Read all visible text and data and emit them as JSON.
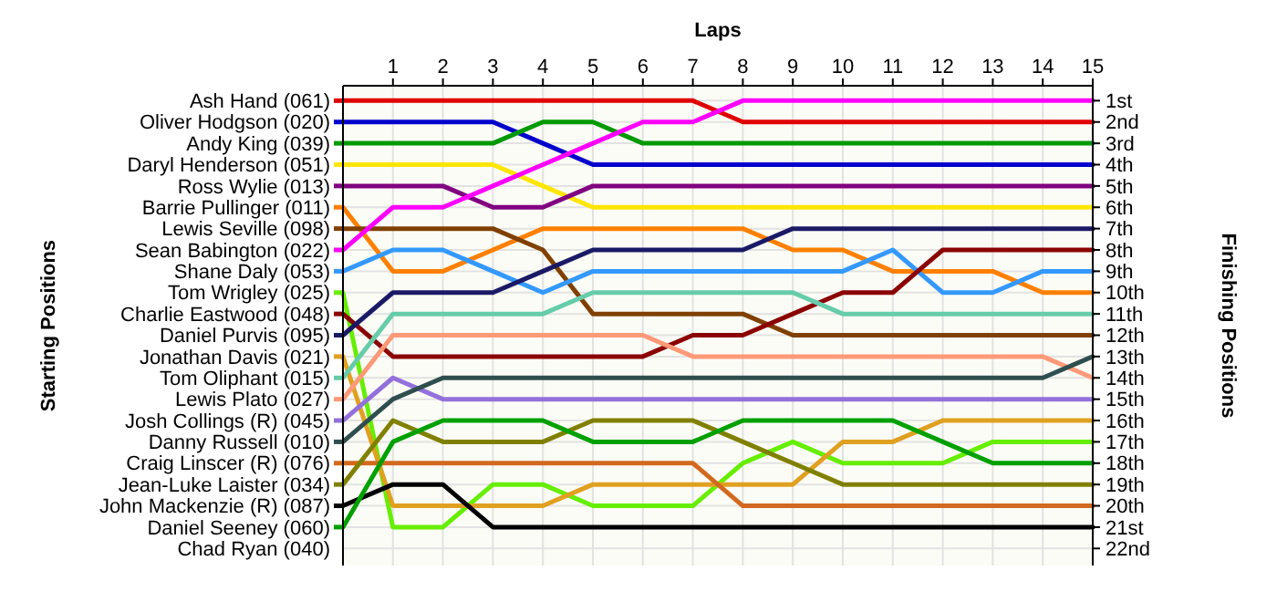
{
  "chart_data": {
    "type": "line",
    "xlabel": "Laps",
    "ylabel": "Finishing Positions",
    "grid": true,
    "legend": "left",
    "annotations": [
      "Starting Positions",
      "Chad Ryan (040)"
    ],
    "x": [
      0,
      1,
      2,
      3,
      4,
      5,
      6,
      7,
      8,
      9,
      10,
      11,
      12,
      13,
      14,
      15
    ],
    "xlim": [
      0,
      15
    ],
    "xticks": [
      1,
      2,
      3,
      4,
      5,
      6,
      7,
      8,
      9,
      10,
      11,
      12,
      13,
      14,
      15
    ],
    "ylim": [
      22.8,
      0.3
    ],
    "yticks": [
      {
        "value": 1,
        "label": "1st"
      },
      {
        "value": 2,
        "label": "2nd"
      },
      {
        "value": 3,
        "label": "3rd"
      },
      {
        "value": 4,
        "label": "4th"
      },
      {
        "value": 5,
        "label": "5th"
      },
      {
        "value": 6,
        "label": "6th"
      },
      {
        "value": 7,
        "label": "7th"
      },
      {
        "value": 8,
        "label": "8th"
      },
      {
        "value": 9,
        "label": "9th"
      },
      {
        "value": 10,
        "label": "10th"
      },
      {
        "value": 11,
        "label": "11th"
      },
      {
        "value": 12,
        "label": "12th"
      },
      {
        "value": 13,
        "label": "13th"
      },
      {
        "value": 14,
        "label": "14th"
      },
      {
        "value": 15,
        "label": "15th"
      },
      {
        "value": 16,
        "label": "16th"
      },
      {
        "value": 17,
        "label": "17th"
      },
      {
        "value": 18,
        "label": "18th"
      },
      {
        "value": 19,
        "label": "19th"
      },
      {
        "value": 20,
        "label": "20th"
      },
      {
        "value": 21,
        "label": "21st"
      },
      {
        "value": 22,
        "label": "22nd"
      }
    ],
    "series": [
      {
        "name": "Ash Hand (061)",
        "color": "#e00000",
        "values": [
          1,
          1,
          1,
          1,
          1,
          1,
          1,
          1,
          2,
          2,
          2,
          2,
          2,
          2,
          2,
          2
        ]
      },
      {
        "name": "Oliver Hodgson (020)",
        "color": "#0000cc",
        "values": [
          2,
          2,
          2,
          2,
          3,
          4,
          4,
          4,
          4,
          4,
          4,
          4,
          4,
          4,
          4,
          4
        ]
      },
      {
        "name": "Andy King (039)",
        "color": "#009900",
        "values": [
          3,
          3,
          3,
          3,
          2,
          2,
          3,
          3,
          3,
          3,
          3,
          3,
          3,
          3,
          3,
          3
        ]
      },
      {
        "name": "Daryl Henderson (051)",
        "color": "#ffe600",
        "values": [
          4,
          4,
          4,
          4,
          5,
          6,
          6,
          6,
          6,
          6,
          6,
          6,
          6,
          6,
          6,
          6
        ]
      },
      {
        "name": "Ross Wylie (013)",
        "color": "#800080",
        "values": [
          5,
          5,
          5,
          6,
          6,
          5,
          5,
          5,
          5,
          5,
          5,
          5,
          5,
          5,
          5,
          5
        ]
      },
      {
        "name": "Barrie Pullinger (011)",
        "color": "#ff8000",
        "values": [
          6,
          9,
          9,
          8,
          7,
          7,
          7,
          7,
          7,
          8,
          8,
          9,
          9,
          9,
          10,
          10
        ]
      },
      {
        "name": "Lewis Seville (098)",
        "color": "#804000",
        "values": [
          7,
          7,
          7,
          7,
          8,
          11,
          11,
          11,
          11,
          12,
          12,
          12,
          12,
          12,
          12,
          12
        ]
      },
      {
        "name": "Sean Babington (022)",
        "color": "#ff00ff",
        "values": [
          8,
          6,
          6,
          5,
          4,
          3,
          2,
          2,
          1,
          1,
          1,
          1,
          1,
          1,
          1,
          1
        ]
      },
      {
        "name": "Shane Daly (053)",
        "color": "#3399ff",
        "values": [
          9,
          8,
          8,
          9,
          10,
          9,
          9,
          9,
          9,
          9,
          9,
          8,
          10,
          10,
          9,
          9
        ]
      },
      {
        "name": "Tom Wrigley (025)",
        "color": "#66ee00",
        "values": [
          10,
          21,
          21,
          19,
          19,
          20,
          20,
          20,
          18,
          17,
          18,
          18,
          18,
          17,
          17,
          17
        ]
      },
      {
        "name": "Charlie Eastwood (048)",
        "color": "#8b0000",
        "values": [
          11,
          13,
          13,
          13,
          13,
          13,
          13,
          12,
          12,
          11,
          10,
          10,
          8,
          8,
          8,
          8
        ]
      },
      {
        "name": "Daniel Purvis (095)",
        "color": "#1a1a66",
        "values": [
          12,
          10,
          10,
          10,
          9,
          8,
          8,
          8,
          8,
          7,
          7,
          7,
          7,
          7,
          7,
          7
        ]
      },
      {
        "name": "Jonathan Davis (021)",
        "color": "#e0a020",
        "values": [
          13,
          20,
          20,
          20,
          20,
          19,
          19,
          19,
          19,
          19,
          17,
          17,
          16,
          16,
          16,
          16
        ]
      },
      {
        "name": "Tom Oliphant (015)",
        "color": "#66ccaa",
        "values": [
          14,
          11,
          11,
          11,
          11,
          10,
          10,
          10,
          10,
          10,
          11,
          11,
          11,
          11,
          11,
          11
        ]
      },
      {
        "name": "Lewis Plato (027)",
        "color": "#ff9977",
        "values": [
          15,
          12,
          12,
          12,
          12,
          12,
          12,
          13,
          13,
          13,
          13,
          13,
          13,
          13,
          13,
          14
        ]
      },
      {
        "name": "Josh Collings (R) (045)",
        "color": "#9370db",
        "values": [
          16,
          14,
          15,
          15,
          15,
          15,
          15,
          15,
          15,
          15,
          15,
          15,
          15,
          15,
          15,
          15
        ]
      },
      {
        "name": "Danny Russell (010)",
        "color": "#2f4f4f",
        "values": [
          17,
          15,
          14,
          14,
          14,
          14,
          14,
          14,
          14,
          14,
          14,
          14,
          14,
          14,
          14,
          13
        ]
      },
      {
        "name": "Craig Linscer (R) (076)",
        "color": "#d2691e",
        "values": [
          18,
          18,
          18,
          18,
          18,
          18,
          18,
          18,
          20,
          20,
          20,
          20,
          20,
          20,
          20,
          20
        ]
      },
      {
        "name": "Jean-Luke Laister (034)",
        "color": "#808000",
        "values": [
          19,
          16,
          17,
          17,
          17,
          16,
          16,
          16,
          17,
          18,
          19,
          19,
          19,
          19,
          19,
          19
        ]
      },
      {
        "name": "John Mackenzie (R) (087)",
        "color": "#000000",
        "values": [
          20,
          19,
          19,
          21,
          21,
          21,
          21,
          21,
          21,
          21,
          21,
          21,
          21,
          21,
          21,
          21
        ]
      },
      {
        "name": "Daniel Seeney (060)",
        "color": "#00a000",
        "values": [
          21,
          17,
          16,
          16,
          16,
          17,
          17,
          17,
          16,
          16,
          16,
          16,
          17,
          18,
          18,
          18
        ]
      }
    ]
  }
}
